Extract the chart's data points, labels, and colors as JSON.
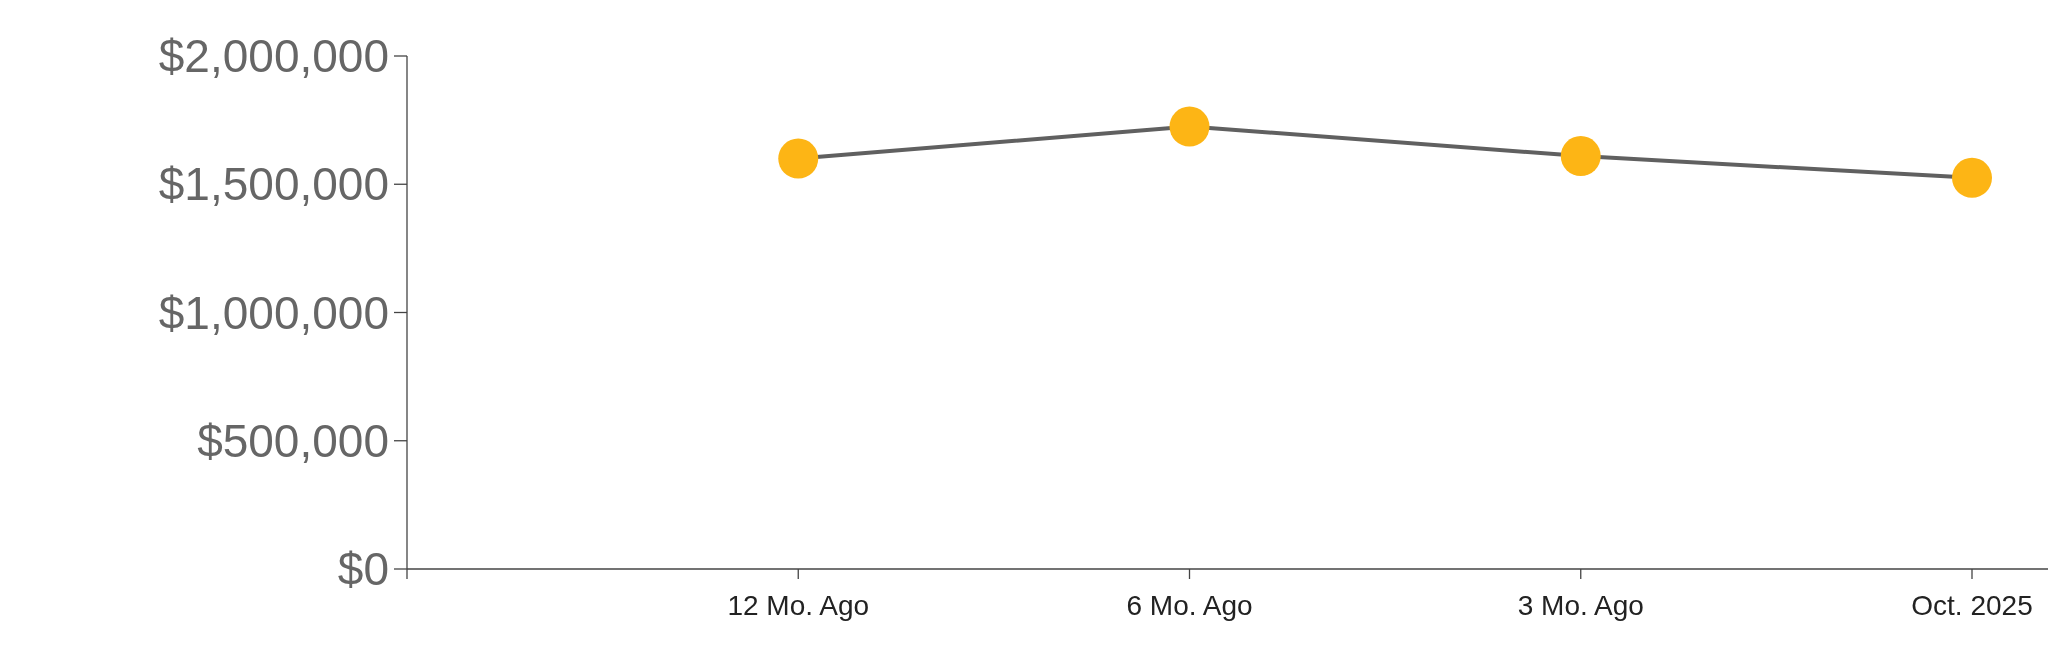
{
  "chart_data": {
    "type": "line",
    "categories": [
      null,
      "12 Mo. Ago",
      "6 Mo. Ago",
      "3 Mo. Ago",
      "Oct. 2025"
    ],
    "series": [
      {
        "color": "#fdb515",
        "values": [
          null,
          1600000,
          1725000,
          1610000,
          1525000
        ]
      }
    ],
    "ylim": [
      0,
      2000000
    ],
    "yticks": [
      {
        "value": 0,
        "label": "$0"
      },
      {
        "value": 500000,
        "label": "$500,000"
      },
      {
        "value": 1000000,
        "label": "$1,000,000"
      },
      {
        "value": 1500000,
        "label": "$1,500,000"
      },
      {
        "value": 2000000,
        "label": "$2,000,000"
      }
    ],
    "marker": "circle",
    "grid": false
  }
}
